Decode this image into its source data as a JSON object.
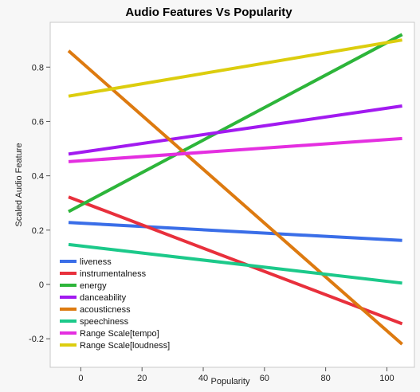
{
  "chart_data": {
    "type": "line",
    "title": "Audio Features Vs Popularity",
    "xlabel": "Popularity",
    "ylabel": "Scaled Audio Feature",
    "xlim": [
      -10,
      109
    ],
    "ylim": [
      -0.305,
      0.965
    ],
    "xticks": [
      0,
      20,
      40,
      60,
      80,
      100
    ],
    "yticks": [
      -0.2,
      0,
      0.2,
      0.4,
      0.6,
      0.8
    ],
    "xtick_labels": [
      "0",
      "20",
      "40",
      "60",
      "80",
      "100"
    ],
    "ytick_labels": [
      "-0.2",
      "0",
      "0.2",
      "0.4",
      "0.6",
      "0.8"
    ],
    "grid": false,
    "legend_position": "bottom-left",
    "x": [
      -4,
      105
    ],
    "series": [
      {
        "name": "liveness",
        "color": "#3a6ee8",
        "values": [
          0.228,
          0.162
        ]
      },
      {
        "name": "instrumentalness",
        "color": "#e8303c",
        "values": [
          0.322,
          -0.145
        ]
      },
      {
        "name": "energy",
        "color": "#2db53a",
        "values": [
          0.268,
          0.92
        ]
      },
      {
        "name": "danceability",
        "color": "#a21af0",
        "values": [
          0.48,
          0.657
        ]
      },
      {
        "name": "acousticness",
        "color": "#dd7a10",
        "values": [
          0.86,
          -0.22
        ]
      },
      {
        "name": "speechiness",
        "color": "#1cc98a",
        "values": [
          0.147,
          0.005
        ]
      },
      {
        "name": "Range Scale[tempo]",
        "color": "#e42fe0",
        "values": [
          0.452,
          0.537
        ]
      },
      {
        "name": "Range Scale[loudness]",
        "color": "#dccd0e",
        "values": [
          0.693,
          0.9
        ]
      }
    ]
  }
}
